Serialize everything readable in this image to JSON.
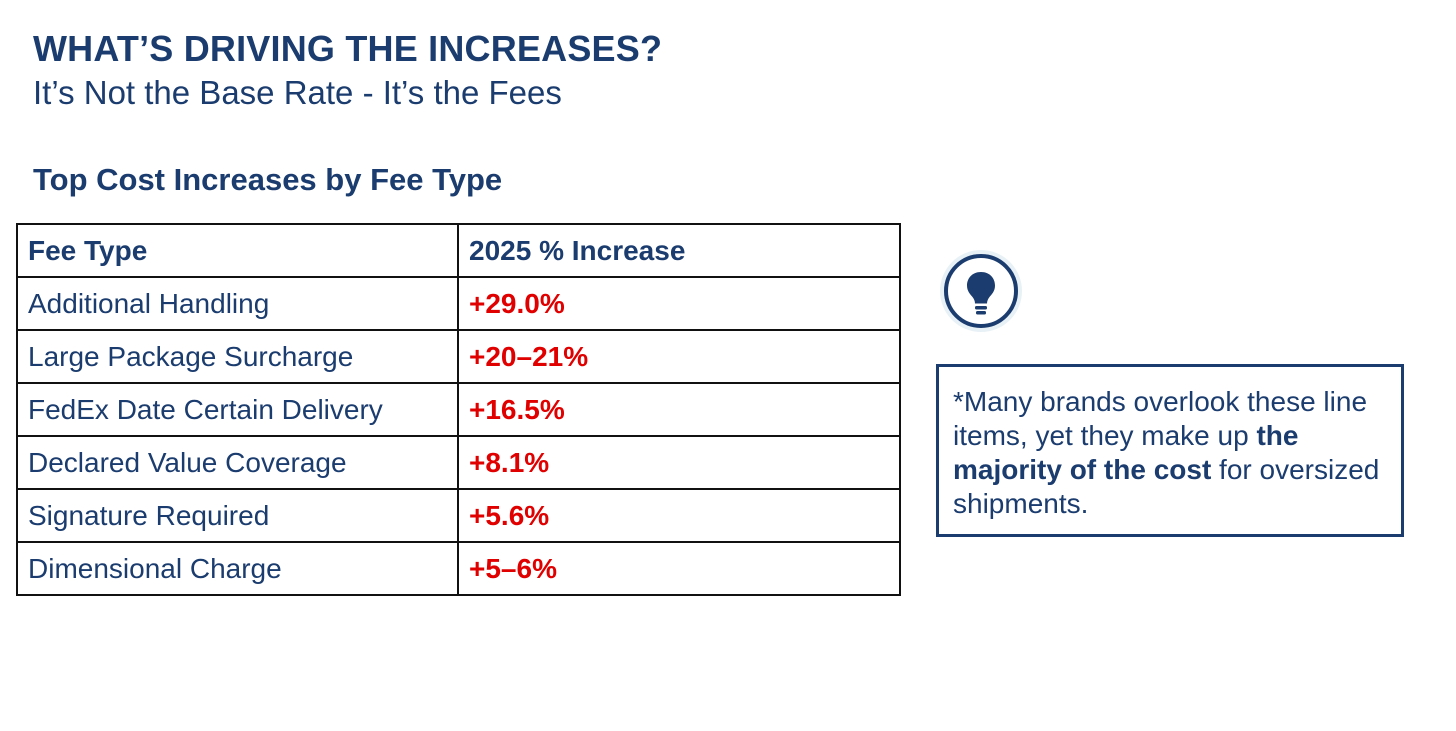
{
  "header": {
    "title": "WHAT’S DRIVING THE INCREASES?",
    "subtitle": "It’s Not the Base Rate - It’s the Fees"
  },
  "table": {
    "title": "Top Cost Increases by Fee Type",
    "columns": [
      "Fee Type",
      "2025 % Increase"
    ],
    "rows": [
      {
        "fee": "Additional Handling",
        "increase": "+29.0%"
      },
      {
        "fee": "Large Package Surcharge",
        "increase": "+20–21%"
      },
      {
        "fee": "FedEx Date Certain Delivery",
        "increase": "+16.5%"
      },
      {
        "fee": "Declared Value Coverage",
        "increase": "+8.1%"
      },
      {
        "fee": "Signature Required",
        "increase": "+5.6%"
      },
      {
        "fee": "Dimensional Charge",
        "increase": "+5–6%"
      }
    ]
  },
  "callout": {
    "icon": "lightbulb-icon",
    "text_before": "*Many brands overlook these line items, yet they make up ",
    "text_bold": "the majority of the cost",
    "text_after": " for oversized shipments."
  },
  "colors": {
    "navy": "#1b3c6e",
    "increase_red": "#e00000",
    "icon_halo": "#e8f1f6"
  }
}
